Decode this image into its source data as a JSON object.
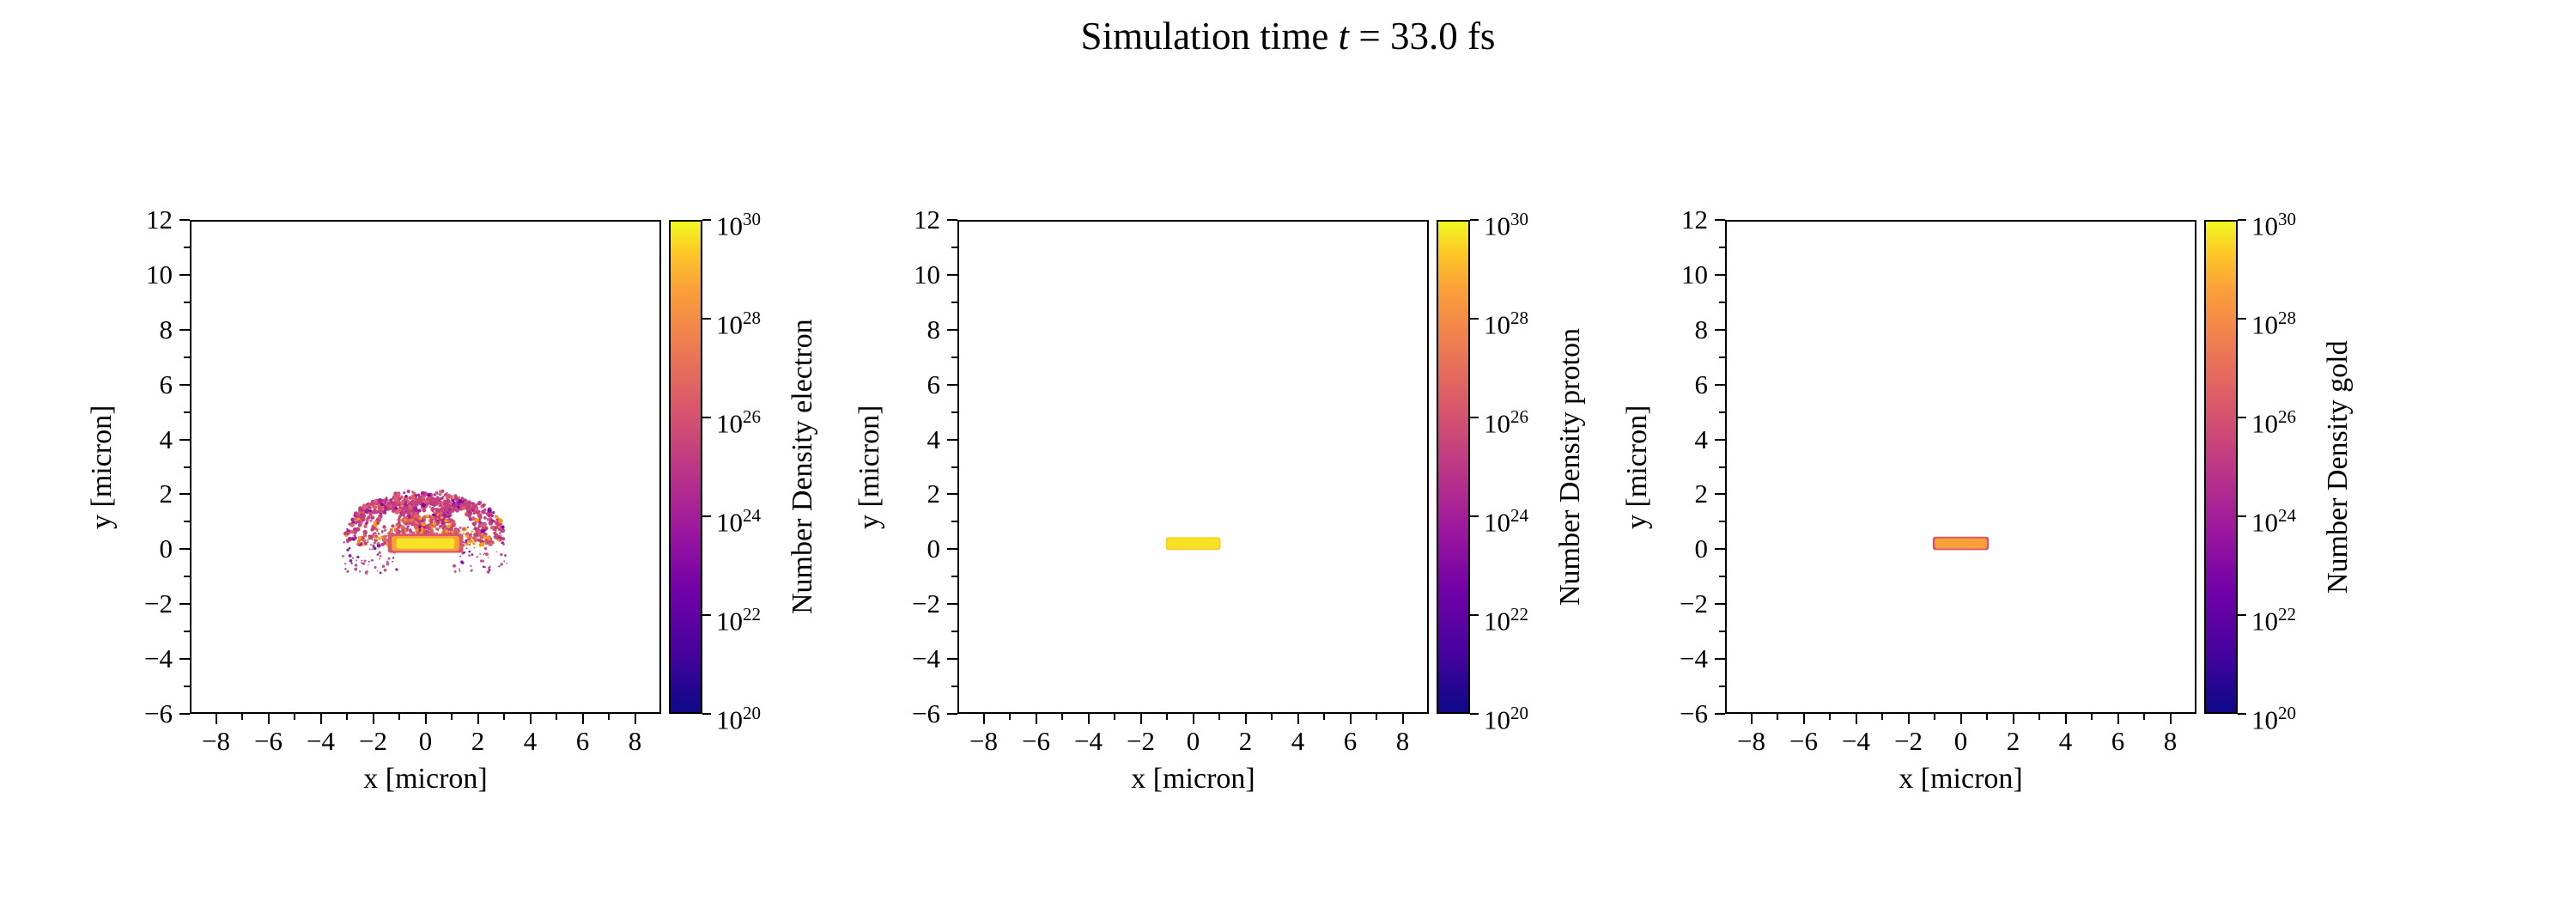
{
  "title": {
    "prefix": "Simulation time ",
    "variable": "t",
    "suffix": " = 33.0 fs"
  },
  "colors": {
    "background": "#ffffff",
    "axis": "#000000",
    "plasma_stops": [
      "#0d0887 0%",
      "#46039f 12%",
      "#7201a8 25%",
      "#9c179e 37%",
      "#bd3786 50%",
      "#d8576b 62%",
      "#ed7953 74%",
      "#fb9f3a 86%",
      "#fdca26 94%",
      "#f0f921 100%"
    ]
  },
  "chart_data": {
    "type": "heatmap",
    "title": "Simulation time t = 33.0 fs",
    "colormap": "plasma",
    "panels": [
      {
        "species": "electron",
        "colorbar_label": "Number Density electron",
        "xlabel": "x [micron]",
        "ylabel": "y [micron]",
        "xlim": [
          -9,
          9
        ],
        "ylim": [
          -6,
          12
        ],
        "x_ticks": [
          -8,
          -6,
          -4,
          -2,
          0,
          2,
          4,
          6,
          8
        ],
        "y_ticks": [
          -6,
          -4,
          -2,
          0,
          2,
          4,
          6,
          8,
          10,
          12
        ],
        "colorbar_scale": "log",
        "colorbar_tick_exponents": [
          30,
          28,
          26,
          24,
          22,
          20
        ],
        "features": [
          {
            "type": "scatter_plume",
            "seed": 7,
            "x_range": [
              -3.4,
              3.4
            ],
            "y_range": [
              -0.9,
              2.3
            ],
            "dot_colors": [
              "#c5407e",
              "#de5f65",
              "#a62098",
              "#fb9b06",
              "#7e03a8",
              "#e97158"
            ],
            "lobes": [
              {
                "cx": -1.5,
                "cy": 0.3,
                "r": 1.5
              },
              {
                "cx": -0.6,
                "cy": 0.4,
                "r": 1.7
              },
              {
                "cx": 0.6,
                "cy": 0.4,
                "r": 1.7
              },
              {
                "cx": 1.5,
                "cy": 0.3,
                "r": 1.5
              }
            ],
            "side_speckles": true
          },
          {
            "type": "layered_bar",
            "layers": [
              {
                "x": [
                  -1.45,
                  1.45
                ],
                "y": [
                  -0.15,
                  0.55
                ],
                "color": "#d8576b"
              },
              {
                "x": [
                  -1.3,
                  1.3
                ],
                "y": [
                  -0.08,
                  0.46
                ],
                "color": "#fb9f3a"
              },
              {
                "x": [
                  -1.12,
                  1.12
                ],
                "y": [
                  0.0,
                  0.38
                ],
                "color": "#f7e225"
              }
            ]
          }
        ]
      },
      {
        "species": "proton",
        "colorbar_label": "Number Density proton",
        "xlabel": "x [micron]",
        "ylabel": "y [micron]",
        "xlim": [
          -9,
          9
        ],
        "ylim": [
          -6,
          12
        ],
        "x_ticks": [
          -8,
          -6,
          -4,
          -2,
          0,
          2,
          4,
          6,
          8
        ],
        "y_ticks": [
          -6,
          -4,
          -2,
          0,
          2,
          4,
          6,
          8,
          10,
          12
        ],
        "colorbar_scale": "log",
        "colorbar_tick_exponents": [
          30,
          28,
          26,
          24,
          22,
          20
        ],
        "features": [
          {
            "type": "layered_bar",
            "layers": [
              {
                "x": [
                  -1.05,
                  1.05
                ],
                "y": [
                  -0.05,
                  0.42
                ],
                "color": "#fdca26"
              },
              {
                "x": [
                  -1.0,
                  1.0
                ],
                "y": [
                  0.0,
                  0.38
                ],
                "color": "#f7e225"
              }
            ]
          }
        ]
      },
      {
        "species": "gold",
        "colorbar_label": "Number Density gold",
        "xlabel": "x [micron]",
        "ylabel": "y [micron]",
        "xlim": [
          -9,
          9
        ],
        "ylim": [
          -6,
          12
        ],
        "x_ticks": [
          -8,
          -6,
          -4,
          -2,
          0,
          2,
          4,
          6,
          8
        ],
        "y_ticks": [
          -6,
          -4,
          -2,
          0,
          2,
          4,
          6,
          8,
          10,
          12
        ],
        "colorbar_scale": "log",
        "colorbar_tick_exponents": [
          30,
          28,
          26,
          24,
          22,
          20
        ],
        "features": [
          {
            "type": "layered_bar",
            "layers": [
              {
                "x": [
                  -1.08,
                  1.08
                ],
                "y": [
                  -0.05,
                  0.44
                ],
                "color": "#d8576b"
              },
              {
                "x": [
                  -1.0,
                  1.0
                ],
                "y": [
                  0.0,
                  0.38
                ],
                "color": "#fb9f3a"
              }
            ]
          }
        ]
      }
    ]
  }
}
